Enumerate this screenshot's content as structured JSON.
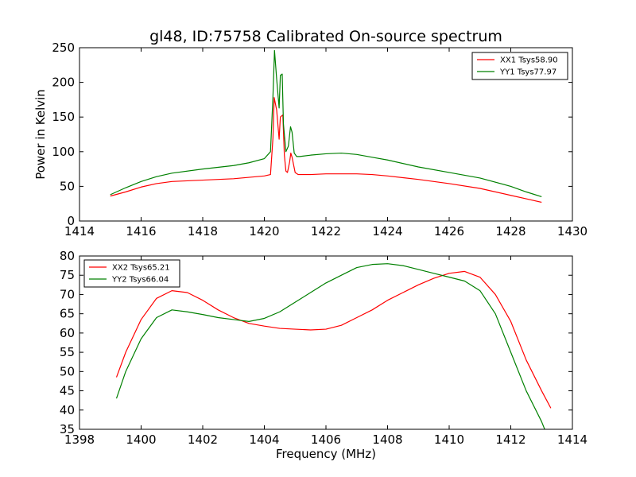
{
  "chart_data": [
    {
      "type": "line",
      "title": "gl48, ID:75758 Calibrated On-source spectrum",
      "xlabel": "",
      "ylabel": "Power in Kelvin",
      "xlim": [
        1414,
        1430
      ],
      "ylim": [
        0,
        250
      ],
      "xticks": [
        "1414",
        "1416",
        "1418",
        "1420",
        "1422",
        "1424",
        "1426",
        "1428",
        "1430"
      ],
      "yticks": [
        "0",
        "50",
        "100",
        "150",
        "200",
        "250"
      ],
      "legend_position": "top-right",
      "series": [
        {
          "name": "XX1 Tsys58.90",
          "color": "#ff0000",
          "x": [
            1415.0,
            1415.5,
            1416.0,
            1416.5,
            1417.0,
            1418.0,
            1419.0,
            1419.5,
            1420.0,
            1420.2,
            1420.28,
            1420.32,
            1420.4,
            1420.48,
            1420.52,
            1420.6,
            1420.65,
            1420.7,
            1420.75,
            1420.82,
            1420.86,
            1420.9,
            1421.0,
            1421.1,
            1421.5,
            1422.0,
            1422.5,
            1423.0,
            1423.5,
            1424.0,
            1425.0,
            1426.0,
            1427.0,
            1428.0,
            1428.5,
            1429.0
          ],
          "y": [
            36,
            42,
            49,
            54,
            57,
            59,
            61,
            63,
            65,
            67,
            120,
            178,
            160,
            118,
            150,
            153,
            95,
            72,
            70,
            85,
            98,
            92,
            70,
            67,
            67,
            68,
            68,
            68,
            67,
            65,
            60,
            54,
            47,
            37,
            32,
            27
          ]
        },
        {
          "name": "YY1 Tsys77.97",
          "color": "#008000",
          "x": [
            1415.0,
            1415.5,
            1416.0,
            1416.5,
            1417.0,
            1418.0,
            1419.0,
            1419.5,
            1420.0,
            1420.2,
            1420.28,
            1420.33,
            1420.4,
            1420.48,
            1420.52,
            1420.58,
            1420.62,
            1420.7,
            1420.78,
            1420.85,
            1420.9,
            1420.97,
            1421.05,
            1421.15,
            1421.5,
            1422.0,
            1422.5,
            1423.0,
            1423.5,
            1424.0,
            1425.0,
            1426.0,
            1427.0,
            1428.0,
            1428.5,
            1429.0
          ],
          "y": [
            38,
            48,
            57,
            64,
            69,
            75,
            80,
            84,
            90,
            100,
            180,
            246,
            205,
            163,
            210,
            212,
            140,
            100,
            108,
            136,
            128,
            98,
            93,
            93,
            95,
            97,
            98,
            96,
            92,
            88,
            78,
            70,
            62,
            50,
            42,
            35
          ]
        }
      ]
    },
    {
      "type": "line",
      "title": "",
      "xlabel": "Frequency (MHz)",
      "ylabel": "",
      "xlim": [
        1398,
        1414
      ],
      "ylim": [
        35,
        80
      ],
      "xticks": [
        "1398",
        "1400",
        "1402",
        "1404",
        "1406",
        "1408",
        "1410",
        "1412",
        "1414"
      ],
      "yticks": [
        "35",
        "40",
        "45",
        "50",
        "55",
        "60",
        "65",
        "70",
        "75",
        "80"
      ],
      "legend_position": "top-left",
      "series": [
        {
          "name": "XX2 Tsys65.21",
          "color": "#ff0000",
          "x": [
            1399.2,
            1399.5,
            1400.0,
            1400.5,
            1401.0,
            1401.5,
            1402.0,
            1402.5,
            1403.0,
            1403.5,
            1404.0,
            1404.5,
            1405.0,
            1405.5,
            1406.0,
            1406.5,
            1407.0,
            1407.5,
            1408.0,
            1408.5,
            1409.0,
            1409.5,
            1410.0,
            1410.5,
            1411.0,
            1411.5,
            1412.0,
            1412.5,
            1413.0,
            1413.3
          ],
          "y": [
            48.5,
            55,
            63.5,
            69,
            71,
            70.5,
            68.5,
            66,
            64,
            62.5,
            61.8,
            61.2,
            61,
            60.8,
            61,
            62,
            64,
            66,
            68.5,
            70.5,
            72.5,
            74.2,
            75.5,
            76,
            74.5,
            70,
            63,
            53,
            45,
            40.5
          ]
        },
        {
          "name": "YY2 Tsys66.04",
          "color": "#008000",
          "x": [
            1399.2,
            1399.5,
            1400.0,
            1400.5,
            1401.0,
            1401.5,
            1402.0,
            1402.5,
            1403.0,
            1403.5,
            1404.0,
            1404.5,
            1405.0,
            1405.5,
            1406.0,
            1406.5,
            1407.0,
            1407.5,
            1408.0,
            1408.5,
            1409.0,
            1409.5,
            1410.0,
            1410.5,
            1411.0,
            1411.5,
            1412.0,
            1412.5,
            1413.0,
            1413.1
          ],
          "y": [
            43,
            50,
            58.5,
            64,
            66,
            65.5,
            64.8,
            64,
            63.5,
            63,
            63.8,
            65.5,
            68,
            70.5,
            73,
            75,
            77,
            77.8,
            78,
            77.5,
            76.5,
            75.5,
            74.5,
            73.5,
            71,
            65,
            55,
            45,
            37,
            35
          ]
        }
      ]
    }
  ]
}
